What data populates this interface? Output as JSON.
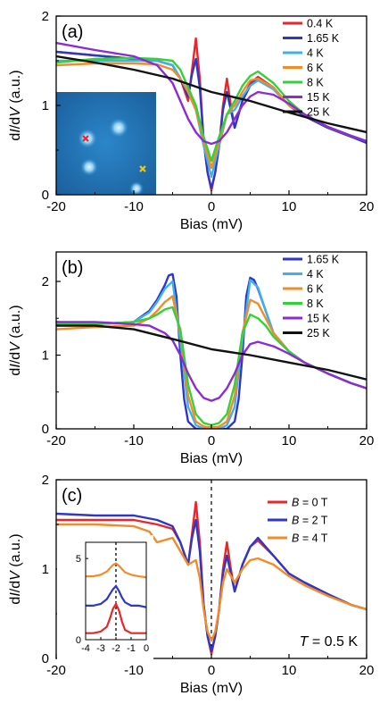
{
  "chart_data": [
    {
      "type": "line",
      "panel_label": "(a)",
      "xlabel": "Bias (mV)",
      "ylabel_parts": [
        "d",
        "I",
        "/d",
        "V",
        " (a.u.)"
      ],
      "xlim": [
        -20,
        20
      ],
      "ylim": [
        0,
        2
      ],
      "xticks": [
        -20,
        -10,
        0,
        10,
        20
      ],
      "yticks": [
        0,
        1,
        2
      ],
      "legend_position": "top-right",
      "inset_image": {
        "description_icon": "stm-topography-icon",
        "markers": [
          "red-x-marker",
          "yellow-x-marker"
        ]
      },
      "series": [
        {
          "name": "0.4 K",
          "color": "#e8262b",
          "x": [
            -20,
            -15,
            -10,
            -7,
            -5,
            -4,
            -3,
            -2.5,
            -2,
            -1.5,
            -1,
            -0.5,
            0,
            0.5,
            1,
            1.5,
            2,
            2.5,
            3,
            4,
            5,
            6,
            8,
            10,
            12,
            15,
            18,
            20
          ],
          "y": [
            1.6,
            1.56,
            1.52,
            1.5,
            1.45,
            1.3,
            1.05,
            1.4,
            1.75,
            1.3,
            0.6,
            0.25,
            0.05,
            0.25,
            0.55,
            1.0,
            1.3,
            1.0,
            0.75,
            1.05,
            1.25,
            1.32,
            1.2,
            1.0,
            0.88,
            0.75,
            0.65,
            0.6
          ]
        },
        {
          "name": "1.65 K",
          "color": "#2e37c8",
          "x": [
            -20,
            -15,
            -10,
            -7,
            -5,
            -4,
            -3,
            -2.5,
            -2,
            -1.5,
            -1,
            -0.5,
            0,
            0.5,
            1,
            1.5,
            2,
            2.5,
            3,
            4,
            5,
            6,
            8,
            10,
            12,
            15,
            18,
            20
          ],
          "y": [
            1.6,
            1.56,
            1.52,
            1.5,
            1.45,
            1.3,
            1.1,
            1.35,
            1.52,
            1.2,
            0.6,
            0.25,
            0.07,
            0.25,
            0.55,
            0.95,
            1.15,
            0.95,
            0.75,
            1.05,
            1.22,
            1.3,
            1.2,
            1.0,
            0.88,
            0.75,
            0.65,
            0.58
          ]
        },
        {
          "name": "4 K",
          "color": "#3fb1ea",
          "x": [
            -20,
            -15,
            -10,
            -7,
            -5,
            -4,
            -3,
            -2,
            -1,
            0,
            1,
            2,
            3,
            4,
            5,
            6,
            8,
            10,
            12,
            15,
            18,
            20
          ],
          "y": [
            1.5,
            1.5,
            1.5,
            1.5,
            1.45,
            1.3,
            1.15,
            0.95,
            0.55,
            0.2,
            0.55,
            0.9,
            0.95,
            1.1,
            1.22,
            1.28,
            1.18,
            1.0,
            0.9,
            0.76,
            0.66,
            0.6
          ]
        },
        {
          "name": "6 K",
          "color": "#f28c28",
          "x": [
            -20,
            -15,
            -10,
            -7,
            -5,
            -4,
            -3,
            -2,
            -1,
            0,
            1,
            2,
            3,
            4,
            5,
            6,
            8,
            10,
            12,
            15,
            18,
            20
          ],
          "y": [
            1.45,
            1.47,
            1.47,
            1.46,
            1.4,
            1.3,
            1.15,
            0.95,
            0.6,
            0.3,
            0.6,
            0.9,
            1.0,
            1.15,
            1.28,
            1.3,
            1.2,
            1.0,
            0.9,
            0.76,
            0.66,
            0.6
          ]
        },
        {
          "name": "8 K",
          "color": "#35d03a",
          "x": [
            -20,
            -15,
            -10,
            -7,
            -5,
            -4,
            -3,
            -2,
            -1,
            0,
            1,
            2,
            3,
            4,
            5,
            6,
            8,
            10,
            12,
            15,
            18,
            20
          ],
          "y": [
            1.48,
            1.52,
            1.53,
            1.52,
            1.5,
            1.4,
            1.2,
            1.0,
            0.65,
            0.38,
            0.65,
            0.9,
            1.05,
            1.22,
            1.33,
            1.38,
            1.25,
            1.05,
            0.9,
            0.76,
            0.66,
            0.6
          ]
        },
        {
          "name": "15 K",
          "color": "#8c2bd6",
          "x": [
            -20,
            -15,
            -10,
            -7,
            -5,
            -4,
            -3,
            -2,
            -1,
            0,
            1,
            2,
            3,
            4,
            5,
            6,
            8,
            10,
            12,
            15,
            18,
            20
          ],
          "y": [
            1.7,
            1.62,
            1.55,
            1.45,
            1.25,
            1.05,
            0.85,
            0.7,
            0.6,
            0.57,
            0.6,
            0.7,
            0.85,
            1.0,
            1.1,
            1.15,
            1.12,
            1.02,
            0.9,
            0.76,
            0.66,
            0.6
          ]
        },
        {
          "name": "25 K",
          "color": "#111111",
          "x": [
            -20,
            -15,
            -10,
            -5,
            0,
            5,
            10,
            15,
            20
          ],
          "y": [
            1.55,
            1.48,
            1.4,
            1.3,
            1.15,
            1.05,
            0.92,
            0.8,
            0.7
          ]
        }
      ]
    },
    {
      "type": "line",
      "panel_label": "(b)",
      "xlabel": "Bias (mV)",
      "ylabel_parts": [
        "d",
        "I",
        "/d",
        "V",
        " (a.u.)"
      ],
      "xlim": [
        -20,
        20
      ],
      "ylim": [
        0,
        2.4
      ],
      "xticks": [
        -20,
        -10,
        0,
        10,
        20
      ],
      "yticks": [
        0,
        1,
        2
      ],
      "legend_position": "top-right",
      "series": [
        {
          "name": "1.65 K",
          "color": "#2e37c8",
          "x": [
            -20,
            -15,
            -10,
            -8,
            -7,
            -6,
            -5.5,
            -5,
            -4.5,
            -4,
            -3.5,
            -3,
            -2,
            -1,
            0,
            1,
            2,
            3,
            3.5,
            4,
            4.5,
            5,
            5.5,
            6,
            7,
            8,
            10,
            12,
            15,
            18,
            20
          ],
          "y": [
            1.45,
            1.42,
            1.45,
            1.6,
            1.75,
            1.95,
            2.08,
            2.1,
            1.8,
            1.0,
            0.4,
            0.1,
            0.0,
            0.0,
            0.0,
            0.0,
            0.0,
            0.1,
            0.4,
            1.0,
            1.8,
            2.05,
            2.02,
            1.9,
            1.6,
            1.3,
            1.05,
            0.9,
            0.75,
            0.62,
            0.55
          ]
        },
        {
          "name": "4 K",
          "color": "#3fb1ea",
          "x": [
            -20,
            -15,
            -10,
            -8,
            -7,
            -6,
            -5,
            -4,
            -3,
            -2,
            -1,
            0,
            1,
            2,
            3,
            4,
            5,
            6,
            7,
            8,
            10,
            12,
            15,
            18,
            20
          ],
          "y": [
            1.45,
            1.42,
            1.45,
            1.58,
            1.72,
            1.9,
            2.0,
            1.2,
            0.3,
            0.05,
            0.0,
            0.0,
            0.0,
            0.05,
            0.3,
            1.2,
            2.02,
            1.92,
            1.6,
            1.3,
            1.05,
            0.9,
            0.75,
            0.62,
            0.55
          ]
        },
        {
          "name": "6 K",
          "color": "#f28c28",
          "x": [
            -20,
            -15,
            -10,
            -8,
            -7,
            -6,
            -5,
            -4,
            -3,
            -2,
            -1,
            0,
            1,
            2,
            3,
            4,
            5,
            6,
            7,
            8,
            10,
            12,
            15,
            18,
            20
          ],
          "y": [
            1.35,
            1.38,
            1.4,
            1.5,
            1.6,
            1.72,
            1.8,
            1.3,
            0.45,
            0.1,
            0.03,
            0.02,
            0.03,
            0.1,
            0.45,
            1.3,
            1.75,
            1.7,
            1.5,
            1.3,
            1.05,
            0.9,
            0.75,
            0.62,
            0.55
          ]
        },
        {
          "name": "8 K",
          "color": "#35d03a",
          "x": [
            -20,
            -15,
            -10,
            -8,
            -7,
            -6,
            -5,
            -4,
            -3,
            -2,
            -1,
            0,
            1,
            2,
            3,
            4,
            5,
            6,
            7,
            8,
            10,
            12,
            15,
            18,
            20
          ],
          "y": [
            1.42,
            1.42,
            1.45,
            1.5,
            1.55,
            1.62,
            1.65,
            1.35,
            0.6,
            0.2,
            0.08,
            0.05,
            0.08,
            0.2,
            0.6,
            1.3,
            1.55,
            1.5,
            1.4,
            1.25,
            1.05,
            0.9,
            0.75,
            0.62,
            0.55
          ]
        },
        {
          "name": "15 K",
          "color": "#8c2bd6",
          "x": [
            -20,
            -15,
            -10,
            -8,
            -6,
            -5,
            -4,
            -3,
            -2,
            -1,
            0,
            1,
            2,
            3,
            4,
            5,
            6,
            8,
            10,
            12,
            15,
            18,
            20
          ],
          "y": [
            1.45,
            1.45,
            1.42,
            1.4,
            1.3,
            1.2,
            1.0,
            0.75,
            0.55,
            0.42,
            0.38,
            0.42,
            0.55,
            0.75,
            1.0,
            1.15,
            1.18,
            1.12,
            1.02,
            0.9,
            0.75,
            0.62,
            0.55
          ]
        },
        {
          "name": "25 K",
          "color": "#111111",
          "x": [
            -20,
            -15,
            -10,
            -5,
            0,
            5,
            10,
            15,
            20
          ],
          "y": [
            1.4,
            1.4,
            1.35,
            1.22,
            1.08,
            1.0,
            0.9,
            0.8,
            0.67
          ]
        }
      ]
    },
    {
      "type": "line",
      "panel_label": "(c)",
      "xlabel": "Bias (mV)",
      "ylabel_parts": [
        "d",
        "I",
        "/d",
        "V",
        " (a.u.)"
      ],
      "xlim": [
        -20,
        20
      ],
      "ylim": [
        0,
        2
      ],
      "xticks": [
        -20,
        -10,
        0,
        10,
        20
      ],
      "yticks": [
        0,
        1,
        2
      ],
      "dashed_vline_x": 0,
      "annotation": {
        "parts": [
          "T",
          " = 0.5 K"
        ]
      },
      "legend_position": "top-right",
      "series": [
        {
          "name_parts": [
            "B",
            " = 0 T"
          ],
          "color": "#e8262b",
          "x": [
            -20,
            -15,
            -10,
            -7,
            -5,
            -4,
            -3,
            -2.5,
            -2,
            -1.5,
            -1,
            -0.5,
            0,
            0.5,
            1,
            1.5,
            2,
            2.5,
            3,
            4,
            5,
            6,
            8,
            10,
            12,
            15,
            18,
            20
          ],
          "y": [
            1.55,
            1.55,
            1.55,
            1.5,
            1.45,
            1.3,
            1.05,
            1.4,
            1.75,
            1.3,
            0.6,
            0.25,
            0.05,
            0.25,
            0.55,
            1.0,
            1.3,
            1.0,
            0.75,
            1.05,
            1.25,
            1.32,
            1.15,
            0.95,
            0.85,
            0.72,
            0.6,
            0.55
          ]
        },
        {
          "name_parts": [
            "B",
            " = 2 T"
          ],
          "color": "#2e37c8",
          "x": [
            -20,
            -15,
            -10,
            -7,
            -5,
            -4,
            -3,
            -2.5,
            -2,
            -1.5,
            -1,
            -0.5,
            0,
            0.5,
            1,
            1.5,
            2,
            2.5,
            3,
            4,
            5,
            6,
            8,
            10,
            12,
            15,
            18,
            20
          ],
          "y": [
            1.62,
            1.6,
            1.6,
            1.55,
            1.48,
            1.3,
            1.05,
            1.35,
            1.55,
            1.2,
            0.6,
            0.25,
            0.08,
            0.25,
            0.55,
            0.95,
            1.15,
            0.95,
            0.75,
            1.05,
            1.25,
            1.35,
            1.15,
            0.95,
            0.85,
            0.72,
            0.6,
            0.55
          ]
        },
        {
          "name_parts": [
            "B",
            " = 4 T"
          ],
          "color": "#f28c28",
          "x": [
            -20,
            -15,
            -10,
            -8,
            -7,
            -5,
            -4,
            -3,
            -2,
            -1.5,
            -1,
            -0.5,
            0,
            0.5,
            1,
            1.5,
            2,
            3,
            4,
            5,
            6,
            8,
            10,
            12,
            15,
            18,
            20
          ],
          "y": [
            1.5,
            1.5,
            1.48,
            1.42,
            1.3,
            1.35,
            1.2,
            1.05,
            1.1,
            0.9,
            0.55,
            0.3,
            0.2,
            0.3,
            0.55,
            0.85,
            1.0,
            0.85,
            1.0,
            1.1,
            1.12,
            1.05,
            0.92,
            0.82,
            0.7,
            0.6,
            0.55
          ]
        }
      ],
      "inset": {
        "xlim": [
          -4,
          0
        ],
        "ylim": [
          0,
          6
        ],
        "xticks": [
          -4,
          -3,
          -2,
          -1,
          0
        ],
        "yticks": [
          0,
          5
        ],
        "dashed_vline_x": -2,
        "series": [
          {
            "color": "#e8262b",
            "x": [
              -4,
              -3.5,
              -3,
              -2.6,
              -2.4,
              -2.2,
              -2.0,
              -1.8,
              -1.6,
              -1.4,
              -1,
              -0.5,
              0
            ],
            "y": [
              0.4,
              0.4,
              0.5,
              0.8,
              1.3,
              1.9,
              2.2,
              1.8,
              1.1,
              0.6,
              0.4,
              0.4,
              0.4
            ]
          },
          {
            "color": "#2e37c8",
            "x": [
              -4,
              -3.5,
              -3,
              -2.6,
              -2.4,
              -2.2,
              -2.0,
              -1.8,
              -1.6,
              -1.4,
              -1,
              -0.5,
              0
            ],
            "y": [
              2.1,
              2.1,
              2.2,
              2.5,
              2.8,
              3.1,
              3.3,
              3.0,
              2.6,
              2.3,
              2.1,
              2.1,
              2.0
            ]
          },
          {
            "color": "#f28c28",
            "x": [
              -4,
              -3.5,
              -3,
              -2.6,
              -2.4,
              -2.2,
              -2.0,
              -1.8,
              -1.6,
              -1.4,
              -1,
              -0.5,
              0
            ],
            "y": [
              3.9,
              3.9,
              4.0,
              4.2,
              4.4,
              4.6,
              4.7,
              4.55,
              4.35,
              4.15,
              4.0,
              3.9,
              3.85
            ]
          }
        ]
      }
    }
  ]
}
